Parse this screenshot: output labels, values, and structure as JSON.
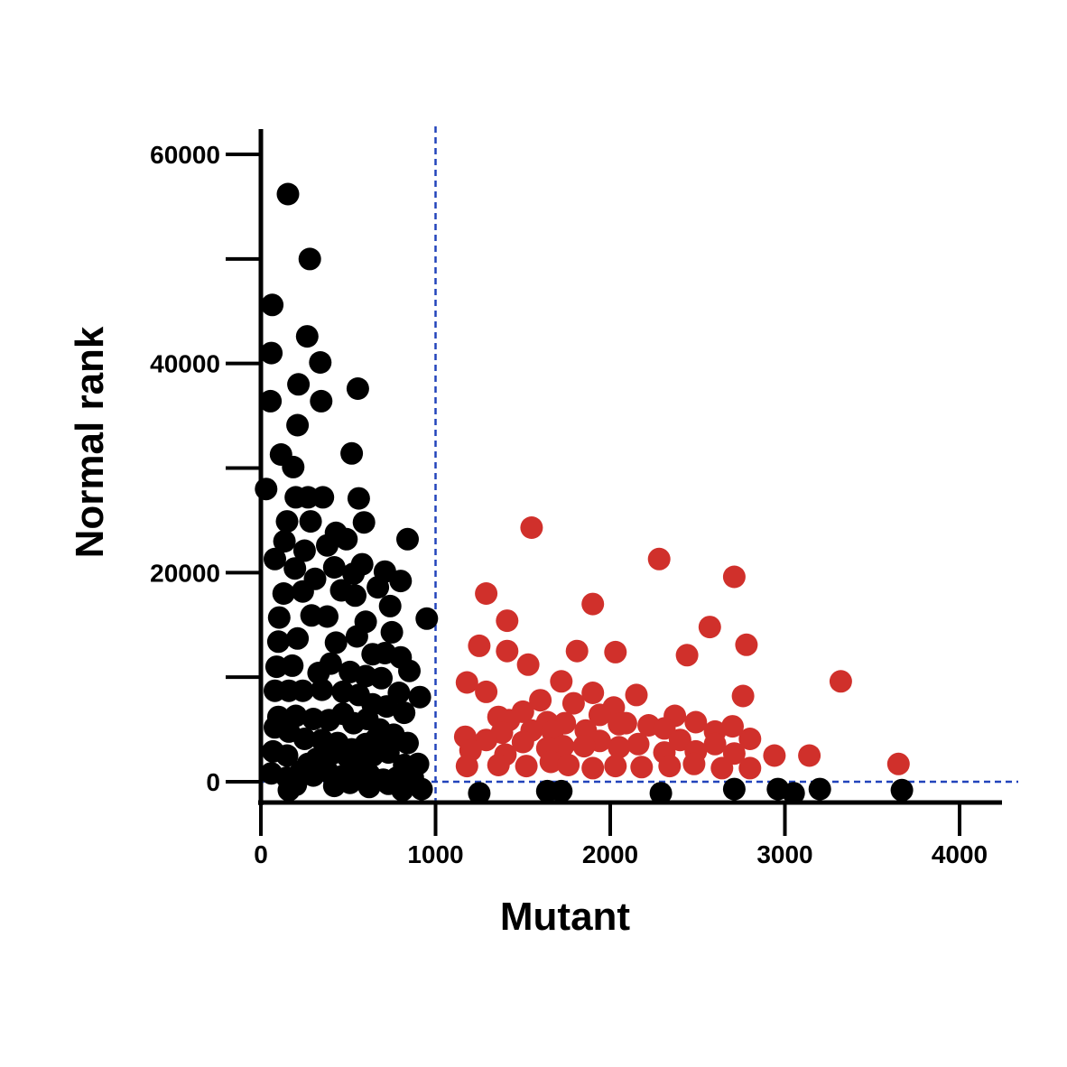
{
  "chart_data": {
    "type": "scatter",
    "xlabel": "Mutant",
    "ylabel": "Normal rank",
    "xlim": [
      0,
      4300
    ],
    "ylim": [
      -2000,
      63000
    ],
    "x_ticks": [
      0,
      1000,
      2000,
      3000,
      4000
    ],
    "x_tick_labels": [
      "0",
      "1000",
      "2000",
      "3000",
      "4000"
    ],
    "y_ticks_major": [
      0,
      20000,
      40000,
      60000
    ],
    "y_tick_labels": [
      "0",
      "20000",
      "40000",
      "60000"
    ],
    "y_ticks_minor": [
      10000,
      30000,
      50000
    ],
    "threshold_x": 1000,
    "threshold_y": 0,
    "grid": false,
    "colors": {
      "axis": "#000000",
      "below_threshold": "#000000",
      "above_threshold": "#d0302b",
      "threshold_line": "#2244bb"
    },
    "series": [
      {
        "color": "#000000",
        "points": [
          [
            155,
            56200
          ],
          [
            280,
            50000
          ],
          [
            65,
            45600
          ],
          [
            60,
            41000
          ],
          [
            265,
            42600
          ],
          [
            340,
            40100
          ],
          [
            55,
            36400
          ],
          [
            215,
            38000
          ],
          [
            345,
            36400
          ],
          [
            555,
            37600
          ],
          [
            210,
            34100
          ],
          [
            115,
            31300
          ],
          [
            520,
            31400
          ],
          [
            185,
            30100
          ],
          [
            30,
            28000
          ],
          [
            200,
            27200
          ],
          [
            270,
            27200
          ],
          [
            355,
            27200
          ],
          [
            560,
            27100
          ],
          [
            150,
            24900
          ],
          [
            285,
            24900
          ],
          [
            590,
            24800
          ],
          [
            430,
            23800
          ],
          [
            840,
            23200
          ],
          [
            135,
            23000
          ],
          [
            250,
            22100
          ],
          [
            380,
            22600
          ],
          [
            490,
            23200
          ],
          [
            80,
            21300
          ],
          [
            195,
            20400
          ],
          [
            310,
            19400
          ],
          [
            420,
            20500
          ],
          [
            580,
            20800
          ],
          [
            710,
            20100
          ],
          [
            800,
            19200
          ],
          [
            530,
            19900
          ],
          [
            130,
            18000
          ],
          [
            240,
            18200
          ],
          [
            460,
            18300
          ],
          [
            540,
            17800
          ],
          [
            670,
            18600
          ],
          [
            740,
            16800
          ],
          [
            950,
            15600
          ],
          [
            105,
            15700
          ],
          [
            290,
            15900
          ],
          [
            380,
            15800
          ],
          [
            600,
            15300
          ],
          [
            750,
            14300
          ],
          [
            100,
            13400
          ],
          [
            210,
            13700
          ],
          [
            430,
            13300
          ],
          [
            550,
            13900
          ],
          [
            640,
            12200
          ],
          [
            710,
            12300
          ],
          [
            800,
            11900
          ],
          [
            90,
            11000
          ],
          [
            180,
            11100
          ],
          [
            330,
            10400
          ],
          [
            400,
            11300
          ],
          [
            510,
            10500
          ],
          [
            600,
            10100
          ],
          [
            690,
            9900
          ],
          [
            850,
            10600
          ],
          [
            80,
            8700
          ],
          [
            160,
            8700
          ],
          [
            240,
            8700
          ],
          [
            350,
            8800
          ],
          [
            470,
            8600
          ],
          [
            560,
            8300
          ],
          [
            640,
            7400
          ],
          [
            720,
            7200
          ],
          [
            790,
            8500
          ],
          [
            910,
            8100
          ],
          [
            100,
            6200
          ],
          [
            200,
            6300
          ],
          [
            300,
            6000
          ],
          [
            390,
            5900
          ],
          [
            470,
            6500
          ],
          [
            530,
            5600
          ],
          [
            610,
            6000
          ],
          [
            680,
            5000
          ],
          [
            820,
            6600
          ],
          [
            80,
            5200
          ],
          [
            160,
            4800
          ],
          [
            250,
            4100
          ],
          [
            350,
            4000
          ],
          [
            440,
            3700
          ],
          [
            520,
            3100
          ],
          [
            600,
            3600
          ],
          [
            660,
            4100
          ],
          [
            760,
            4500
          ],
          [
            840,
            3700
          ],
          [
            70,
            2900
          ],
          [
            150,
            2500
          ],
          [
            270,
            1700
          ],
          [
            320,
            2200
          ],
          [
            410,
            2700
          ],
          [
            500,
            2300
          ],
          [
            570,
            1800
          ],
          [
            640,
            2500
          ],
          [
            730,
            2800
          ],
          [
            820,
            1600
          ],
          [
            900,
            1700
          ],
          [
            60,
            800
          ],
          [
            150,
            400
          ],
          [
            230,
            1000
          ],
          [
            300,
            600
          ],
          [
            380,
            1000
          ],
          [
            460,
            500
          ],
          [
            540,
            800
          ],
          [
            620,
            700
          ],
          [
            700,
            200
          ],
          [
            780,
            400
          ],
          [
            870,
            400
          ],
          [
            160,
            -800
          ],
          [
            200,
            -300
          ],
          [
            420,
            -400
          ],
          [
            510,
            -100
          ],
          [
            620,
            -500
          ],
          [
            730,
            -200
          ],
          [
            810,
            -800
          ],
          [
            920,
            -700
          ],
          [
            1250,
            -1100
          ],
          [
            1640,
            -900
          ],
          [
            1720,
            -900
          ],
          [
            2290,
            -1100
          ],
          [
            2710,
            -700
          ],
          [
            2960,
            -700
          ],
          [
            3050,
            -1100
          ],
          [
            3200,
            -700
          ],
          [
            3670,
            -800
          ]
        ]
      },
      {
        "color": "#d0302b",
        "points": [
          [
            1550,
            24300
          ],
          [
            2280,
            21300
          ],
          [
            2710,
            19600
          ],
          [
            1290,
            18000
          ],
          [
            1900,
            17000
          ],
          [
            1410,
            15400
          ],
          [
            2570,
            14800
          ],
          [
            1250,
            13000
          ],
          [
            1410,
            12500
          ],
          [
            1810,
            12500
          ],
          [
            2030,
            12400
          ],
          [
            2440,
            12100
          ],
          [
            2780,
            13100
          ],
          [
            1530,
            11200
          ],
          [
            1180,
            9500
          ],
          [
            1720,
            9600
          ],
          [
            3320,
            9600
          ],
          [
            1290,
            8600
          ],
          [
            1900,
            8500
          ],
          [
            2150,
            8300
          ],
          [
            2760,
            8200
          ],
          [
            1600,
            7800
          ],
          [
            1790,
            7500
          ],
          [
            2020,
            7100
          ],
          [
            1360,
            6200
          ],
          [
            1500,
            6700
          ],
          [
            1940,
            6400
          ],
          [
            2370,
            6300
          ],
          [
            1420,
            5900
          ],
          [
            1640,
            5700
          ],
          [
            1740,
            5600
          ],
          [
            2090,
            5600
          ],
          [
            2220,
            5400
          ],
          [
            2490,
            5700
          ],
          [
            2700,
            5300
          ],
          [
            1170,
            4300
          ],
          [
            1380,
            4700
          ],
          [
            1550,
            4900
          ],
          [
            1670,
            4800
          ],
          [
            1860,
            4900
          ],
          [
            2050,
            5500
          ],
          [
            2310,
            5100
          ],
          [
            2600,
            4800
          ],
          [
            2800,
            4100
          ],
          [
            1290,
            4000
          ],
          [
            1500,
            3800
          ],
          [
            1730,
            3400
          ],
          [
            1940,
            3900
          ],
          [
            2050,
            3300
          ],
          [
            2400,
            4000
          ],
          [
            2600,
            3600
          ],
          [
            1200,
            3000
          ],
          [
            1400,
            2600
          ],
          [
            1640,
            3200
          ],
          [
            1850,
            3400
          ],
          [
            2160,
            3600
          ],
          [
            2310,
            2800
          ],
          [
            2490,
            2900
          ],
          [
            2710,
            2700
          ],
          [
            2940,
            2500
          ],
          [
            3140,
            2500
          ],
          [
            1180,
            1500
          ],
          [
            1360,
            1600
          ],
          [
            1520,
            1500
          ],
          [
            1660,
            1900
          ],
          [
            1760,
            1600
          ],
          [
            1900,
            1300
          ],
          [
            2030,
            1500
          ],
          [
            2180,
            1400
          ],
          [
            2340,
            1500
          ],
          [
            2480,
            1700
          ],
          [
            2640,
            1300
          ],
          [
            2800,
            1300
          ],
          [
            3650,
            1700
          ]
        ]
      }
    ]
  }
}
